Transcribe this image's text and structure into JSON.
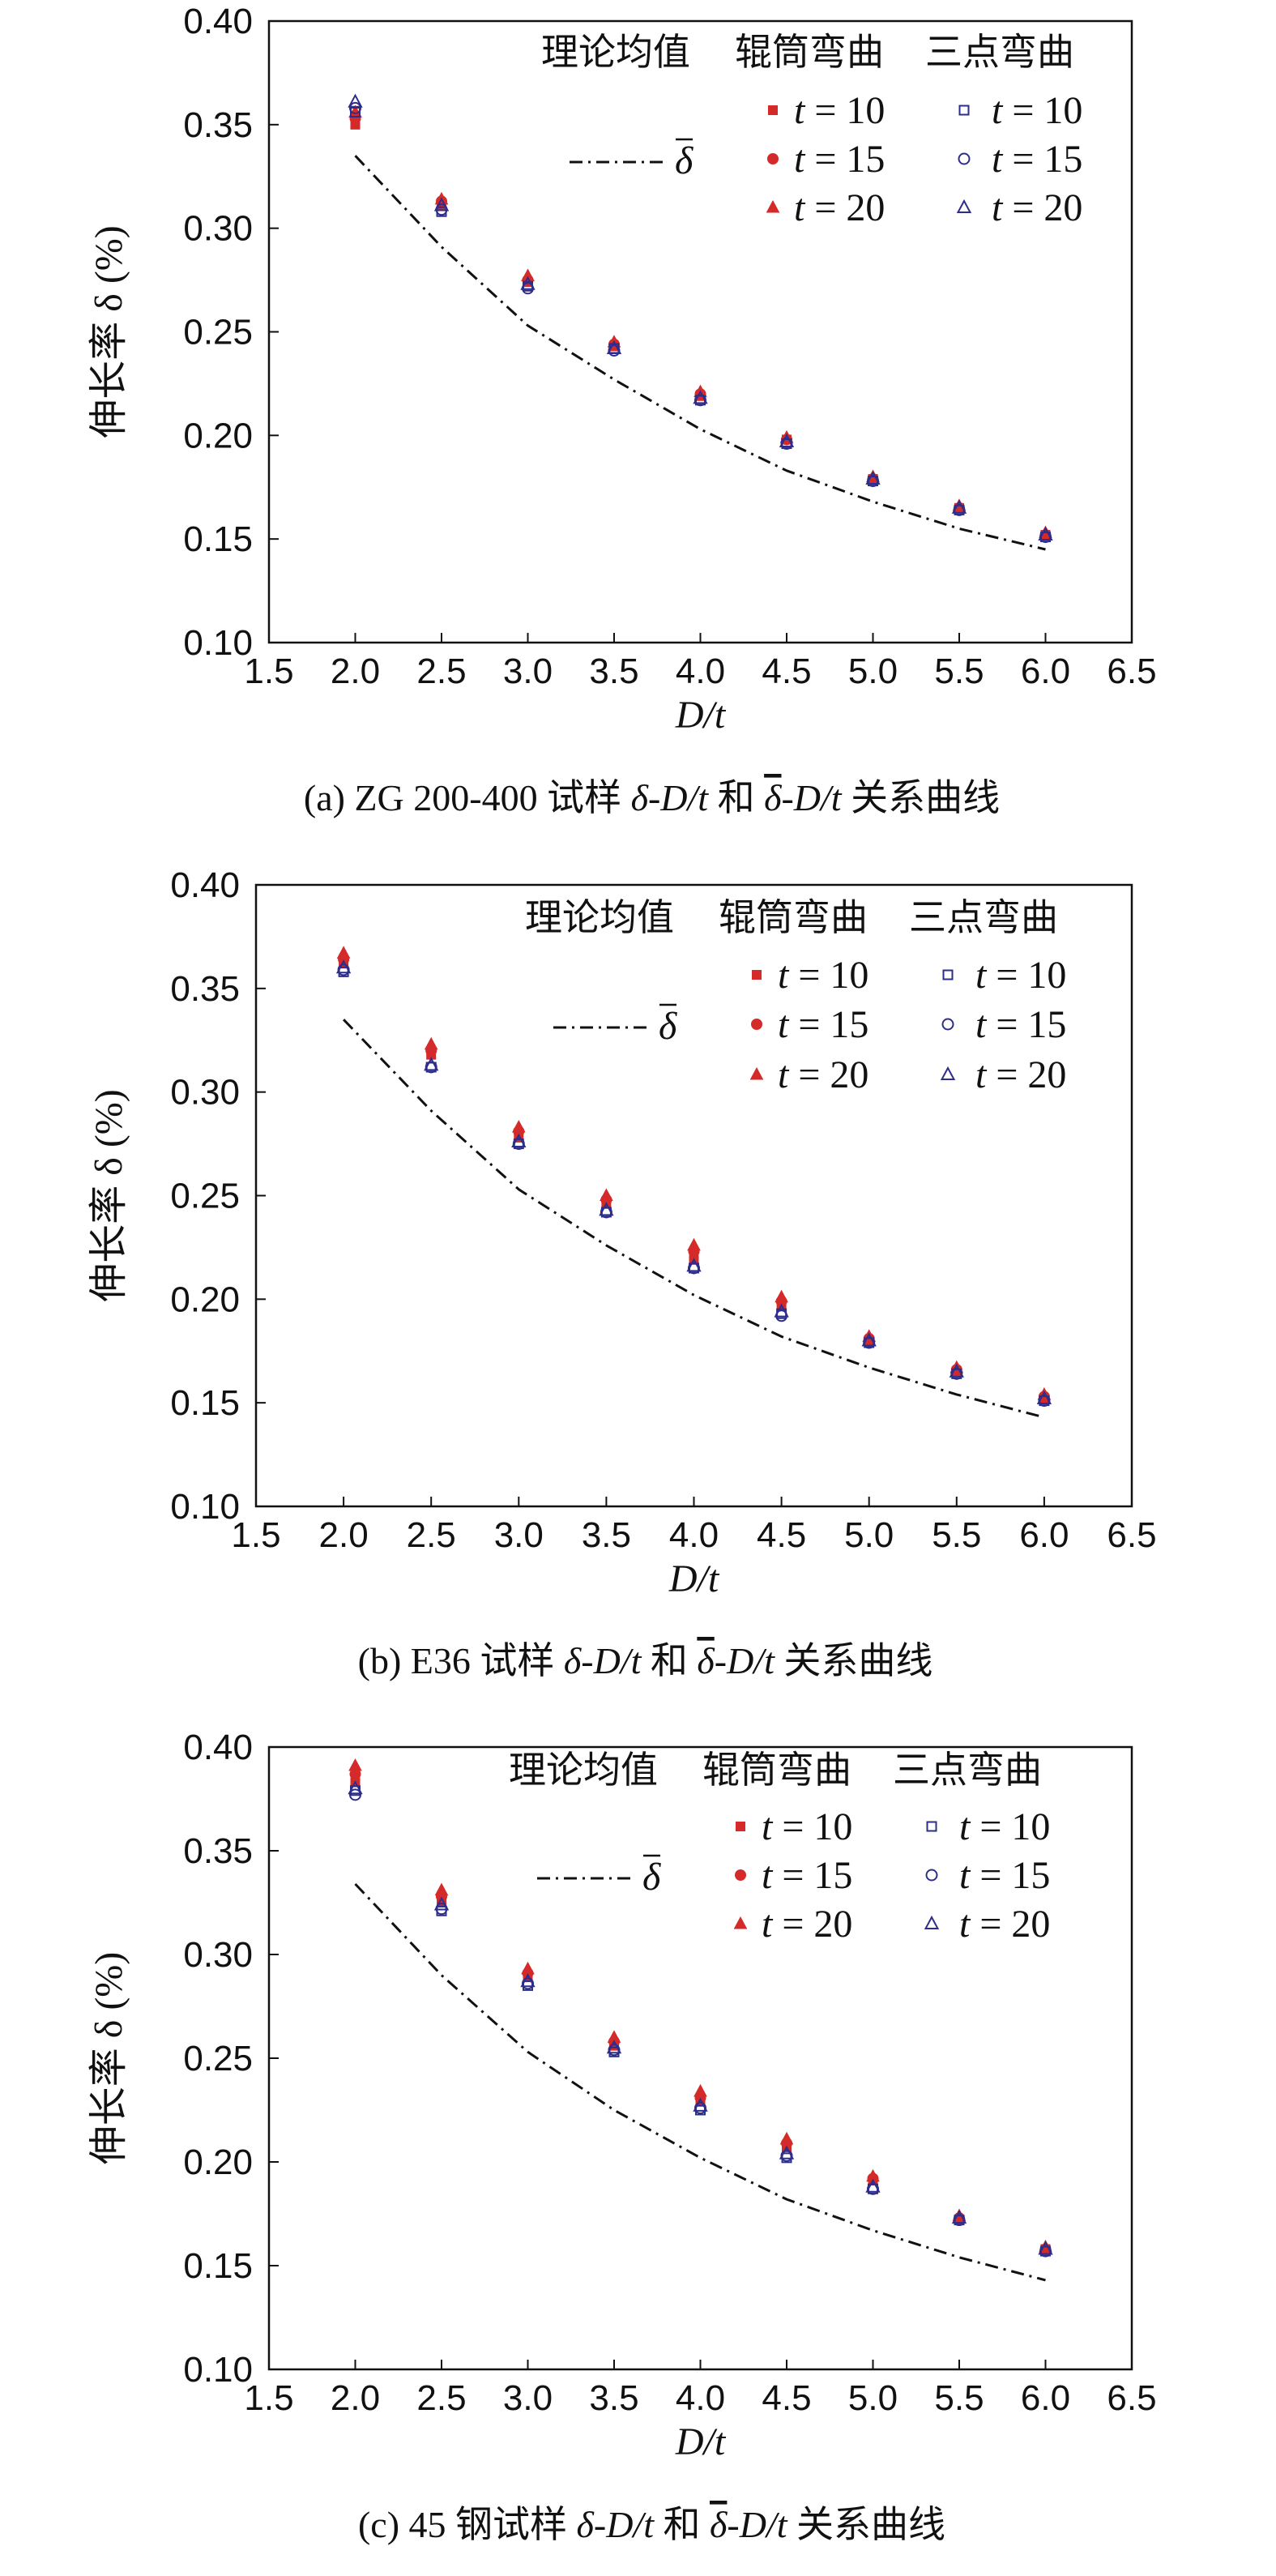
{
  "colors": {
    "roller": "#d42a2a",
    "three_point": "#2d2d8c",
    "theory": "#111111",
    "axis": "#111111"
  },
  "chart_data": [
    {
      "type": "scatter",
      "caption": {
        "tag": "(a) ZG 200-400 试样 ",
        "r1": "δ-D/t",
        "and": " 和 ",
        "bar": "δ",
        "r2": "-D/t",
        "tail": " 关系曲线"
      },
      "xlabel": "D/t",
      "ylabel": "伸长率 δ (%)",
      "xlim": [
        1.5,
        6.5
      ],
      "ylim": [
        0.1,
        0.4
      ],
      "xticks": [
        "1.5",
        "2.0",
        "2.5",
        "3.0",
        "3.5",
        "4.0",
        "4.5",
        "5.0",
        "5.5",
        "6.0",
        "6.5"
      ],
      "yticks": [
        "0.10",
        "0.15",
        "0.20",
        "0.25",
        "0.30",
        "0.35",
        "0.40"
      ],
      "legend": {
        "header": [
          "理论均值",
          "辊筒弯曲",
          "三点弯曲"
        ],
        "bar_label": "δ",
        "t_labels": [
          "t = 10",
          "t = 15",
          "t = 20"
        ]
      },
      "theory": {
        "x": [
          2.0,
          2.5,
          3.0,
          3.5,
          4.0,
          4.5,
          5.0,
          5.5,
          6.0
        ],
        "y": [
          0.335,
          0.291,
          0.253,
          0.227,
          0.203,
          0.183,
          0.168,
          0.155,
          0.145
        ]
      },
      "series": [
        {
          "group": "roller",
          "t": 10,
          "marker": "square",
          "x": [
            2.0,
            2.5,
            3.0,
            3.5,
            4.0,
            4.5,
            5.0,
            5.5,
            6.0
          ],
          "y": [
            0.35,
            0.311,
            0.274,
            0.243,
            0.219,
            0.198,
            0.179,
            0.165,
            0.152
          ]
        },
        {
          "group": "roller",
          "t": 15,
          "marker": "circle",
          "x": [
            2.0,
            2.5,
            3.0,
            3.5,
            4.0,
            4.5,
            5.0,
            5.5,
            6.0
          ],
          "y": [
            0.353,
            0.313,
            0.275,
            0.244,
            0.22,
            0.198,
            0.179,
            0.165,
            0.152
          ]
        },
        {
          "group": "roller",
          "t": 20,
          "marker": "triangle",
          "x": [
            2.0,
            2.5,
            3.0,
            3.5,
            4.0,
            4.5,
            5.0,
            5.5,
            6.0
          ],
          "y": [
            0.356,
            0.314,
            0.277,
            0.245,
            0.221,
            0.199,
            0.18,
            0.166,
            0.153
          ]
        },
        {
          "group": "three_point",
          "t": 10,
          "marker": "square",
          "x": [
            2.0,
            2.5,
            3.0,
            3.5,
            4.0,
            4.5,
            5.0,
            5.5,
            6.0
          ],
          "y": [
            0.356,
            0.308,
            0.272,
            0.242,
            0.217,
            0.196,
            0.178,
            0.164,
            0.151
          ]
        },
        {
          "group": "three_point",
          "t": 15,
          "marker": "circle",
          "x": [
            2.0,
            2.5,
            3.0,
            3.5,
            4.0,
            4.5,
            5.0,
            5.5,
            6.0
          ],
          "y": [
            0.358,
            0.309,
            0.271,
            0.241,
            0.217,
            0.196,
            0.178,
            0.164,
            0.151
          ]
        },
        {
          "group": "three_point",
          "t": 20,
          "marker": "triangle",
          "x": [
            2.0,
            2.5,
            3.0,
            3.5,
            4.0,
            4.5,
            5.0,
            5.5,
            6.0
          ],
          "y": [
            0.361,
            0.311,
            0.273,
            0.242,
            0.218,
            0.197,
            0.179,
            0.165,
            0.152
          ]
        }
      ]
    },
    {
      "type": "scatter",
      "caption": {
        "tag": "(b) E36 试样 ",
        "r1": "δ-D/t",
        "and": " 和 ",
        "bar": "δ",
        "r2": "-D/t",
        "tail": " 关系曲线"
      },
      "xlabel": "D/t",
      "ylabel": "伸长率 δ (%)",
      "xlim": [
        1.5,
        6.5
      ],
      "ylim": [
        0.1,
        0.4
      ],
      "xticks": [
        "1.5",
        "2.0",
        "2.5",
        "3.0",
        "3.5",
        "4.0",
        "4.5",
        "5.0",
        "5.5",
        "6.0",
        "6.5"
      ],
      "yticks": [
        "0.10",
        "0.15",
        "0.20",
        "0.25",
        "0.30",
        "0.35",
        "0.40"
      ],
      "legend": {
        "header": [
          "理论均值",
          "辊筒弯曲",
          "三点弯曲"
        ],
        "bar_label": "δ",
        "t_labels": [
          "t = 10",
          "t = 15",
          "t = 20"
        ]
      },
      "theory": {
        "x": [
          2.0,
          2.5,
          3.0,
          3.5,
          4.0,
          4.5,
          5.0,
          5.5,
          6.0
        ],
        "y": [
          0.335,
          0.291,
          0.253,
          0.226,
          0.202,
          0.182,
          0.167,
          0.154,
          0.143
        ]
      },
      "series": [
        {
          "group": "roller",
          "t": 10,
          "marker": "square",
          "x": [
            2.0,
            2.5,
            3.0,
            3.5,
            4.0,
            4.5,
            5.0,
            5.5,
            6.0
          ],
          "y": [
            0.362,
            0.318,
            0.278,
            0.246,
            0.219,
            0.197,
            0.18,
            0.165,
            0.152
          ]
        },
        {
          "group": "roller",
          "t": 15,
          "marker": "circle",
          "x": [
            2.0,
            2.5,
            3.0,
            3.5,
            4.0,
            4.5,
            5.0,
            5.5,
            6.0
          ],
          "y": [
            0.364,
            0.32,
            0.281,
            0.248,
            0.223,
            0.199,
            0.181,
            0.166,
            0.153
          ]
        },
        {
          "group": "roller",
          "t": 20,
          "marker": "triangle",
          "x": [
            2.0,
            2.5,
            3.0,
            3.5,
            4.0,
            4.5,
            5.0,
            5.5,
            6.0
          ],
          "y": [
            0.367,
            0.323,
            0.283,
            0.25,
            0.226,
            0.201,
            0.182,
            0.167,
            0.154
          ]
        },
        {
          "group": "three_point",
          "t": 10,
          "marker": "square",
          "x": [
            2.0,
            2.5,
            3.0,
            3.5,
            4.0,
            4.5,
            5.0,
            5.5,
            6.0
          ],
          "y": [
            0.358,
            0.312,
            0.275,
            0.242,
            0.215,
            0.193,
            0.179,
            0.164,
            0.151
          ]
        },
        {
          "group": "three_point",
          "t": 15,
          "marker": "circle",
          "x": [
            2.0,
            2.5,
            3.0,
            3.5,
            4.0,
            4.5,
            5.0,
            5.5,
            6.0
          ],
          "y": [
            0.359,
            0.312,
            0.275,
            0.242,
            0.215,
            0.192,
            0.179,
            0.164,
            0.151
          ]
        },
        {
          "group": "three_point",
          "t": 20,
          "marker": "triangle",
          "x": [
            2.0,
            2.5,
            3.0,
            3.5,
            4.0,
            4.5,
            5.0,
            5.5,
            6.0
          ],
          "y": [
            0.36,
            0.313,
            0.276,
            0.243,
            0.216,
            0.194,
            0.18,
            0.165,
            0.152
          ]
        }
      ]
    },
    {
      "type": "scatter",
      "caption": {
        "tag": "(c) 45 钢试样 ",
        "r1": "δ-D/t",
        "and": " 和 ",
        "bar": "δ",
        "r2": "-D/t",
        "tail": " 关系曲线"
      },
      "xlabel": "D/t",
      "ylabel": "伸长率 δ (%)",
      "xlim": [
        1.5,
        6.5
      ],
      "ylim": [
        0.1,
        0.4
      ],
      "xticks": [
        "1.5",
        "2.0",
        "2.5",
        "3.0",
        "3.5",
        "4.0",
        "4.5",
        "5.0",
        "5.5",
        "6.0",
        "6.5"
      ],
      "yticks": [
        "0.10",
        "0.15",
        "0.20",
        "0.25",
        "0.30",
        "0.35",
        "0.40"
      ],
      "legend": {
        "header": [
          "理论均值",
          "辊筒弯曲",
          "三点弯曲"
        ],
        "bar_label": "δ",
        "t_labels": [
          "t = 10",
          "t = 15",
          "t = 20"
        ]
      },
      "theory": {
        "x": [
          2.0,
          2.5,
          3.0,
          3.5,
          4.0,
          4.5,
          5.0,
          5.5,
          6.0
        ],
        "y": [
          0.334,
          0.29,
          0.253,
          0.225,
          0.202,
          0.182,
          0.167,
          0.154,
          0.143
        ]
      },
      "series": [
        {
          "group": "roller",
          "t": 10,
          "marker": "square",
          "x": [
            2.0,
            2.5,
            3.0,
            3.5,
            4.0,
            4.5,
            5.0,
            5.5,
            6.0
          ],
          "y": [
            0.383,
            0.325,
            0.289,
            0.256,
            0.229,
            0.207,
            0.191,
            0.172,
            0.158
          ]
        },
        {
          "group": "roller",
          "t": 15,
          "marker": "circle",
          "x": [
            2.0,
            2.5,
            3.0,
            3.5,
            4.0,
            4.5,
            5.0,
            5.5,
            6.0
          ],
          "y": [
            0.387,
            0.328,
            0.291,
            0.258,
            0.231,
            0.209,
            0.192,
            0.173,
            0.158
          ]
        },
        {
          "group": "roller",
          "t": 20,
          "marker": "triangle",
          "x": [
            2.0,
            2.5,
            3.0,
            3.5,
            4.0,
            4.5,
            5.0,
            5.5,
            6.0
          ],
          "y": [
            0.391,
            0.331,
            0.293,
            0.26,
            0.234,
            0.211,
            0.193,
            0.174,
            0.159
          ]
        },
        {
          "group": "three_point",
          "t": 10,
          "marker": "square",
          "x": [
            2.0,
            2.5,
            3.0,
            3.5,
            4.0,
            4.5,
            5.0,
            5.5,
            6.0
          ],
          "y": [
            0.379,
            0.321,
            0.285,
            0.253,
            0.225,
            0.202,
            0.187,
            0.172,
            0.157
          ]
        },
        {
          "group": "three_point",
          "t": 15,
          "marker": "circle",
          "x": [
            2.0,
            2.5,
            3.0,
            3.5,
            4.0,
            4.5,
            5.0,
            5.5,
            6.0
          ],
          "y": [
            0.377,
            0.322,
            0.286,
            0.254,
            0.226,
            0.203,
            0.187,
            0.172,
            0.157
          ]
        },
        {
          "group": "three_point",
          "t": 20,
          "marker": "triangle",
          "x": [
            2.0,
            2.5,
            3.0,
            3.5,
            4.0,
            4.5,
            5.0,
            5.5,
            6.0
          ],
          "y": [
            0.38,
            0.324,
            0.287,
            0.255,
            0.227,
            0.204,
            0.188,
            0.173,
            0.158
          ]
        }
      ]
    }
  ]
}
